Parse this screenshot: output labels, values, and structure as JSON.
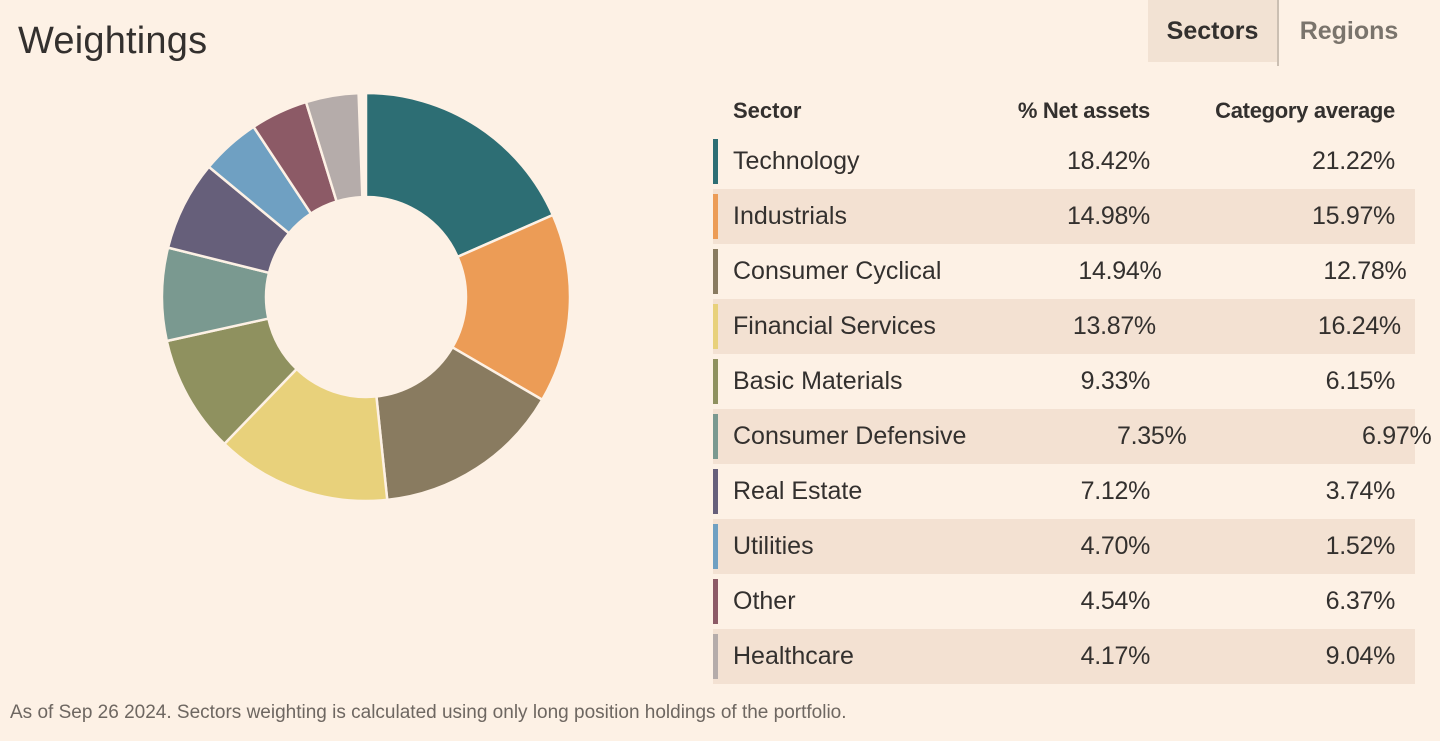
{
  "page": {
    "title": "Weightings",
    "footnote": "As of Sep 26 2024. Sectors weighting is calculated using only long position holdings of the portfolio."
  },
  "tabs": {
    "sectors": {
      "label": "Sectors",
      "active": true
    },
    "regions": {
      "label": "Regions",
      "active": false
    }
  },
  "table": {
    "columns": [
      "Sector",
      "% Net assets",
      "Category average"
    ]
  },
  "sectors": [
    {
      "name": "Technology",
      "net_assets": "18.42%",
      "net_assets_value": 18.42,
      "category_average": "21.22%",
      "category_average_value": 21.22,
      "color": "#2D6E74"
    },
    {
      "name": "Industrials",
      "net_assets": "14.98%",
      "net_assets_value": 14.98,
      "category_average": "15.97%",
      "category_average_value": 15.97,
      "color": "#EC9C56"
    },
    {
      "name": "Consumer Cyclical",
      "net_assets": "14.94%",
      "net_assets_value": 14.94,
      "category_average": "12.78%",
      "category_average_value": 12.78,
      "color": "#897B60"
    },
    {
      "name": "Financial Services",
      "net_assets": "13.87%",
      "net_assets_value": 13.87,
      "category_average": "16.24%",
      "category_average_value": 16.24,
      "color": "#E8D17B"
    },
    {
      "name": "Basic Materials",
      "net_assets": "9.33%",
      "net_assets_value": 9.33,
      "category_average": "6.15%",
      "category_average_value": 6.15,
      "color": "#8F915F"
    },
    {
      "name": "Consumer Defensive",
      "net_assets": "7.35%",
      "net_assets_value": 7.35,
      "category_average": "6.97%",
      "category_average_value": 6.97,
      "color": "#7A9990"
    },
    {
      "name": "Real Estate",
      "net_assets": "7.12%",
      "net_assets_value": 7.12,
      "category_average": "3.74%",
      "category_average_value": 3.74,
      "color": "#665F7A"
    },
    {
      "name": "Utilities",
      "net_assets": "4.70%",
      "net_assets_value": 4.7,
      "category_average": "1.52%",
      "category_average_value": 1.52,
      "color": "#6FA0C2"
    },
    {
      "name": "Other",
      "net_assets": "4.54%",
      "net_assets_value": 4.54,
      "category_average": "6.37%",
      "category_average_value": 6.37,
      "color": "#8C5A66"
    },
    {
      "name": "Healthcare",
      "net_assets": "4.17%",
      "net_assets_value": 4.17,
      "category_average": "9.04%",
      "category_average_value": 9.04,
      "color": "#B5ACAA"
    }
  ],
  "chart_data": {
    "type": "pie",
    "subtype": "donut",
    "title": "Weightings",
    "categories": [
      "Technology",
      "Industrials",
      "Consumer Cyclical",
      "Financial Services",
      "Basic Materials",
      "Consumer Defensive",
      "Real Estate",
      "Utilities",
      "Other",
      "Healthcare"
    ],
    "series": [
      {
        "name": "% Net assets",
        "values": [
          18.42,
          14.98,
          14.94,
          13.87,
          9.33,
          7.35,
          7.12,
          4.7,
          4.54,
          4.17
        ]
      },
      {
        "name": "Category average",
        "values": [
          21.22,
          15.97,
          12.78,
          16.24,
          6.15,
          6.97,
          3.74,
          1.52,
          6.37,
          9.04
        ]
      }
    ],
    "donut_series": "% Net assets",
    "colors": [
      "#2D6E74",
      "#EC9C56",
      "#897B60",
      "#E8D17B",
      "#8F915F",
      "#7A9990",
      "#665F7A",
      "#6FA0C2",
      "#8C5A66",
      "#B5ACAA"
    ],
    "start_angle_deg": 0,
    "direction": "clockwise",
    "inner_radius_ratio": 0.49,
    "unfilled_remainder_pct": 0.58,
    "legend_position": "table-right"
  },
  "colors": {
    "background": "#FDF1E5",
    "row_shade": "#F3E1D2",
    "tab_active_bg": "#F2E2D3",
    "tab_divider": "#CBBFB2",
    "text_dark": "#33302E",
    "text_muted": "#7A746C",
    "footnote_text": "#6E6761"
  }
}
